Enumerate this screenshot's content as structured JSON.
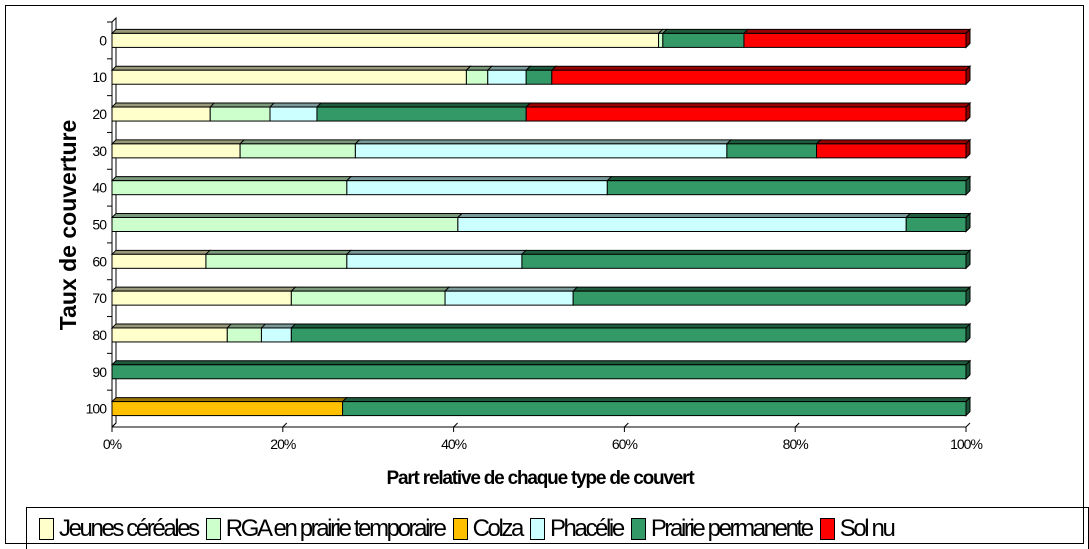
{
  "chart_data": {
    "type": "bar",
    "orientation": "horizontal",
    "stacked": "percent",
    "categories": [
      "0",
      "10",
      "20",
      "30",
      "40",
      "50",
      "60",
      "70",
      "80",
      "90",
      "100"
    ],
    "series": [
      {
        "name": "Jeunes céréales",
        "color": "#ffffcc",
        "values": [
          64,
          41.5,
          11.5,
          15,
          0,
          0,
          11,
          21,
          13.5,
          0,
          0
        ]
      },
      {
        "name": "RGA en prairie temporaire",
        "color": "#ccffcc",
        "values": [
          0.5,
          2.5,
          7,
          13.5,
          27.5,
          40.5,
          16.5,
          18,
          4,
          0,
          0
        ]
      },
      {
        "name": "Colza",
        "color": "#ffc000",
        "values": [
          0,
          0,
          0,
          0,
          0,
          0,
          0,
          0,
          0,
          0,
          27
        ]
      },
      {
        "name": "Phacélie",
        "color": "#ccffff",
        "values": [
          0,
          4.5,
          5.5,
          43.5,
          30.5,
          52.5,
          20.5,
          15,
          3.5,
          0,
          0
        ]
      },
      {
        "name": "Prairie permanente",
        "color": "#339966",
        "values": [
          9.5,
          3,
          24.5,
          10.5,
          42,
          7,
          52,
          46,
          79,
          100,
          73
        ]
      },
      {
        "name": "Sol nu",
        "color": "#ff0000",
        "values": [
          26,
          48.5,
          51.5,
          17.5,
          0,
          0,
          0,
          0,
          0,
          0,
          0
        ]
      }
    ],
    "xlabel": "Part relative de chaque type de couvert",
    "ylabel": "Taux de couverture",
    "xticks": [
      "0%",
      "20%",
      "40%",
      "60%",
      "80%",
      "100%"
    ],
    "xlim": [
      0,
      100
    ],
    "grid": false,
    "legend_position": "bottom"
  }
}
